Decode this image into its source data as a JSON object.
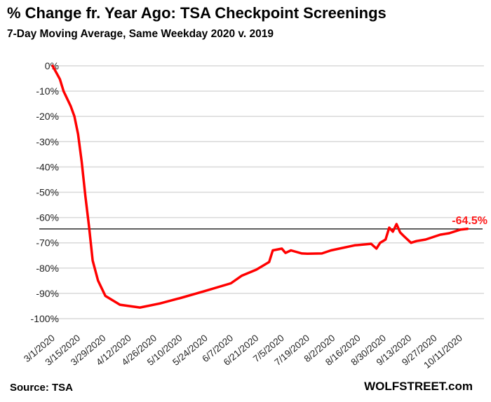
{
  "title": "% Change fr. Year Ago: TSA Checkpoint Screenings",
  "subtitle": "7-Day Moving Average, Same Weekday 2020 v. 2019",
  "source": "Source: TSA",
  "brand": "WOLFSTREET.com",
  "chart_data": {
    "type": "line",
    "title": "% Change fr. Year Ago: TSA Checkpoint Screenings",
    "subtitle": "7-Day Moving Average, Same Weekday 2020 v. 2019",
    "xlabel": "",
    "ylabel": "",
    "ylim": [
      -100,
      0
    ],
    "yticks": [
      "0%",
      "-10%",
      "-20%",
      "-30%",
      "-40%",
      "-50%",
      "-60%",
      "-70%",
      "-80%",
      "-90%",
      "-100%"
    ],
    "xticks": [
      "3/1/2020",
      "3/15/2020",
      "3/29/2020",
      "4/12/2020",
      "4/26/2020",
      "5/10/2020",
      "5/24/2020",
      "6/7/2020",
      "6/21/2020",
      "7/5/2020",
      "7/19/2020",
      "8/2/2020",
      "8/16/2020",
      "8/30/2020",
      "9/13/2020",
      "9/27/2020",
      "10/11/2020"
    ],
    "grid": true,
    "line_color": "#ff0000",
    "reference_line": {
      "value": -64.5,
      "label": "-64.5%",
      "color": "#000000",
      "label_color": "#ff1a1a"
    },
    "series": [
      {
        "x": [
          "3/1/2020",
          "3/5/2020",
          "3/7/2020",
          "3/11/2020",
          "3/13/2020",
          "3/15/2020",
          "3/17/2020",
          "3/19/2020",
          "3/21/2020",
          "3/23/2020",
          "3/26/2020",
          "3/30/2020",
          "4/7/2020",
          "4/18/2020",
          "4/29/2020",
          "5/11/2020",
          "5/24/2020",
          "6/7/2020",
          "6/13/2020",
          "6/21/2020",
          "6/28/2020",
          "6/30/2020",
          "7/5/2020",
          "7/7/2020",
          "7/10/2020",
          "7/16/2020",
          "7/19/2020",
          "7/27/2020",
          "8/1/2020",
          "8/14/2020",
          "8/23/2020",
          "8/26/2020",
          "8/28/2020",
          "8/31/2020",
          "9/2/2020",
          "9/4/2020",
          "9/6/2020",
          "9/8/2020",
          "9/10/2020",
          "9/14/2020",
          "9/17/2020",
          "9/22/2020",
          "9/30/2020",
          "10/5/2020",
          "10/11/2020",
          "10/15/2020"
        ],
        "y": [
          0,
          -5.3,
          -10,
          -16,
          -20,
          -27,
          -38,
          -51.5,
          -63.5,
          -77,
          -85,
          -91,
          -94.5,
          -95.6,
          -94,
          -91.7,
          -89,
          -86,
          -83,
          -80.6,
          -77.6,
          -73,
          -72.3,
          -74,
          -73,
          -74.2,
          -74.3,
          -74.2,
          -73,
          -71,
          -70.4,
          -72.3,
          -70,
          -68.7,
          -64,
          -65.6,
          -62.6,
          -65.9,
          -67.3,
          -70,
          -69.3,
          -68.7,
          -66.8,
          -66.2,
          -64.8,
          -64.5
        ]
      }
    ]
  }
}
